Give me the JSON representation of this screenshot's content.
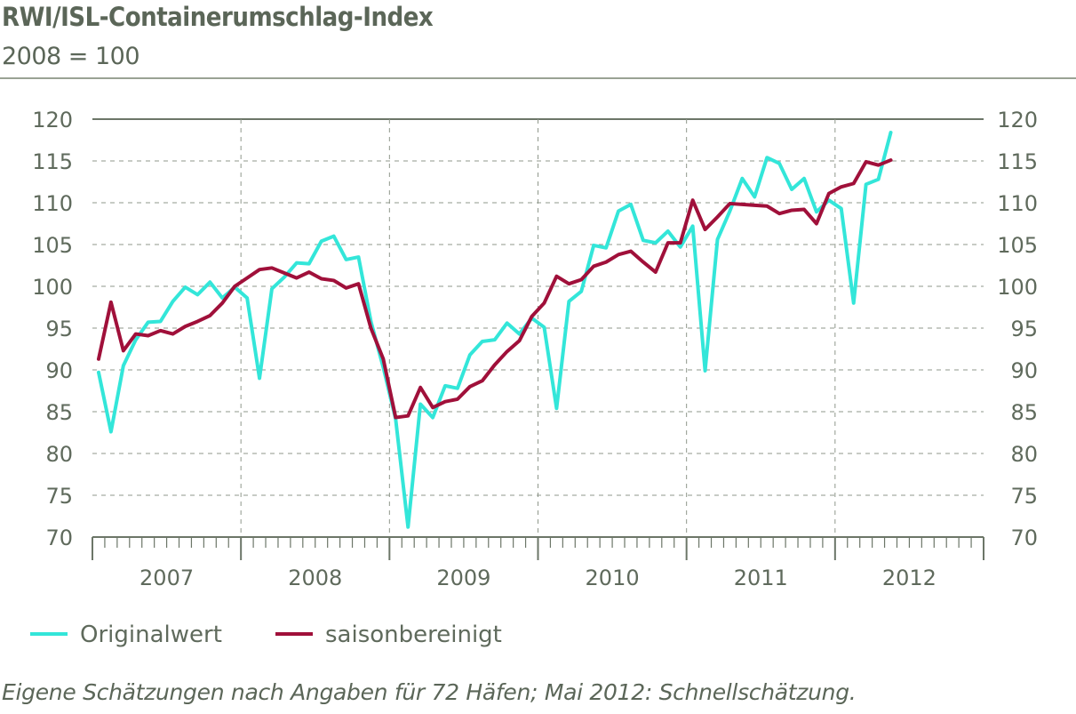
{
  "header": {
    "title": "RWI/ISL-Containerumschlag-Index",
    "subtitle": "2008 = 100"
  },
  "footnote": "Eigene Schätzungen nach Angaben für 72 Häfen; Mai 2012: Schnellschätzung.",
  "colors": {
    "original": "#33e6d9",
    "seasonal": "#a0103a",
    "grid": "#8f978b",
    "axis": "#6c7668"
  },
  "chart_data": {
    "type": "line",
    "title": "RWI/ISL-Containerumschlag-Index",
    "subtitle": "2008 = 100",
    "ylim": [
      70,
      120
    ],
    "y_ticks": [
      70,
      75,
      80,
      85,
      90,
      95,
      100,
      105,
      110,
      115,
      120
    ],
    "x_start": "2007-01",
    "x_months": 72,
    "year_labels": [
      "2007",
      "2008",
      "2009",
      "2010",
      "2011",
      "2012"
    ],
    "grid": true,
    "legend_position": "bottom-left",
    "series": [
      {
        "name": "Originalwert",
        "color": "#33e6d9",
        "values": [
          89.7,
          82.6,
          90.5,
          93.6,
          95.7,
          95.8,
          98.2,
          99.9,
          99.0,
          100.5,
          98.6,
          99.9,
          98.6,
          89.0,
          99.7,
          101.1,
          102.8,
          102.7,
          105.4,
          106.0,
          103.2,
          103.5,
          95.8,
          90.3,
          84.1,
          71.2,
          85.9,
          84.3,
          88.1,
          87.8,
          91.8,
          93.4,
          93.6,
          95.6,
          94.3,
          96.2,
          95.1,
          85.4,
          98.2,
          99.4,
          104.9,
          104.6,
          109.0,
          109.8,
          105.5,
          105.2,
          106.6,
          104.7,
          107.2,
          89.9,
          105.6,
          109.0,
          112.9,
          110.7,
          115.4,
          114.7,
          111.6,
          112.9,
          108.9,
          110.3,
          109.3,
          98.0,
          112.2,
          112.8,
          118.4
        ]
      },
      {
        "name": "saisonbereinigt",
        "color": "#a0103a",
        "values": [
          91.3,
          98.1,
          92.3,
          94.3,
          94.1,
          94.7,
          94.3,
          95.2,
          95.8,
          96.5,
          98.0,
          100.0,
          101.0,
          102.0,
          102.2,
          101.6,
          101.0,
          101.7,
          100.9,
          100.7,
          99.8,
          100.3,
          95.0,
          91.3,
          84.3,
          84.5,
          87.9,
          85.5,
          86.2,
          86.5,
          88.0,
          88.7,
          90.6,
          92.2,
          93.5,
          96.4,
          98.0,
          101.2,
          100.3,
          100.8,
          102.4,
          102.9,
          103.8,
          104.2,
          102.9,
          101.7,
          105.2,
          105.2,
          110.3,
          106.8,
          108.3,
          109.9,
          109.8,
          109.7,
          109.6,
          108.7,
          109.1,
          109.2,
          107.5,
          111.1,
          111.9,
          112.3,
          114.9,
          114.5,
          115.1
        ]
      }
    ]
  }
}
